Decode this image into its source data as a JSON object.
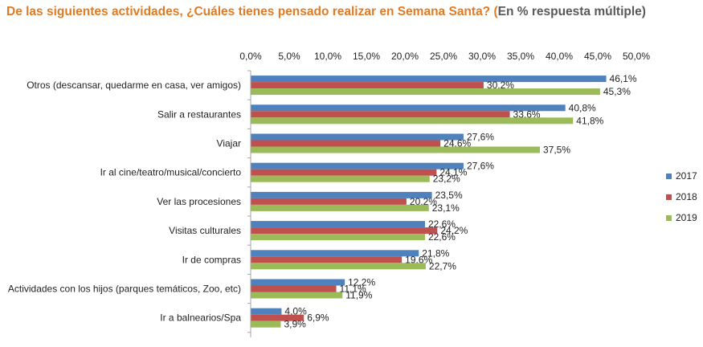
{
  "title": {
    "main": "De las siguientes actividades, ¿Cuáles tienes pensado realizar en Semana Santa? (",
    "sub": "En % respuesta múltiple)"
  },
  "chart_data": {
    "type": "bar",
    "orientation": "horizontal",
    "categories": [
      "Otros (descansar, quedarme en casa, ver amigos)",
      "Salir a restaurantes",
      "Viajar",
      "Ir al cine/teatro/musical/concierto",
      "Ver las procesiones",
      "Visitas culturales",
      "Ir de compras",
      "Actividades con los hijos (parques temáticos, Zoo, etc)",
      "Ir a balnearios/Spa"
    ],
    "series": [
      {
        "name": "2017",
        "color": "#4F81BD",
        "values": [
          46.1,
          40.8,
          27.6,
          27.6,
          23.5,
          22.6,
          21.8,
          12.2,
          4.0
        ]
      },
      {
        "name": "2018",
        "color": "#C0504D",
        "values": [
          30.2,
          33.6,
          24.6,
          24.1,
          20.2,
          24.2,
          19.6,
          11.1,
          6.9
        ]
      },
      {
        "name": "2019",
        "color": "#9BBB59",
        "values": [
          45.3,
          41.8,
          37.5,
          23.2,
          23.1,
          22.6,
          22.7,
          11.9,
          3.9
        ]
      }
    ],
    "data_labels": [
      [
        "46,1%",
        "40,8%",
        "27,6%",
        "27,6%",
        "23,5%",
        "22,6%",
        "21,8%",
        "12,2%",
        "4,0%"
      ],
      [
        "30,2%",
        "33,6%",
        "24,6%",
        "24,1%",
        "20,2%",
        "24,2%",
        "19,6%",
        "11,1%",
        "6,9%"
      ],
      [
        "45,3%",
        "41,8%",
        "37,5%",
        "23,2%",
        "23,1%",
        "22,6%",
        "22,7%",
        "11,9%",
        "3,9%"
      ]
    ],
    "xlim": [
      0,
      50
    ],
    "x_ticks": [
      0,
      5,
      10,
      15,
      20,
      25,
      30,
      35,
      40,
      45,
      50
    ],
    "x_tick_labels": [
      "0,0%",
      "5,0%",
      "10,0%",
      "15,0%",
      "20,0%",
      "25,0%",
      "30,0%",
      "35,0%",
      "40,0%",
      "45,0%",
      "50,0%"
    ],
    "x_axis_position": "top",
    "grid": false,
    "legend_position": "right"
  }
}
